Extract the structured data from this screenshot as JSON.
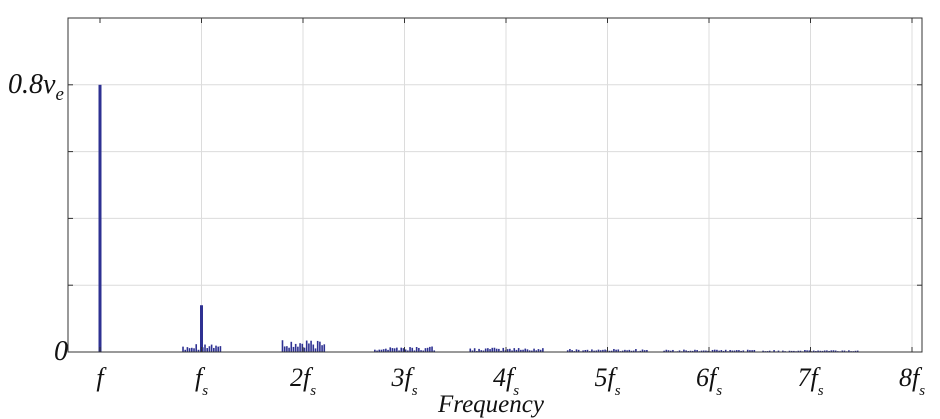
{
  "chart_data": {
    "type": "bar",
    "title": "",
    "xlabel": "Frequency",
    "ylabel": "",
    "x_unit": "f_s",
    "xlim": [
      0,
      8
    ],
    "ylim": [
      0,
      1.0
    ],
    "grid": true,
    "legend": "none",
    "bar_color": "#2e3192",
    "x_ticks": [
      {
        "value": 0,
        "main": "f",
        "sub": ""
      },
      {
        "value": 1,
        "main": "f",
        "sub": "s"
      },
      {
        "value": 2,
        "main": "2f",
        "sub": "s"
      },
      {
        "value": 3,
        "main": "3f",
        "sub": "s"
      },
      {
        "value": 4,
        "main": "4f",
        "sub": "s"
      },
      {
        "value": 5,
        "main": "5f",
        "sub": "s"
      },
      {
        "value": 6,
        "main": "6f",
        "sub": "s"
      },
      {
        "value": 7,
        "main": "7f",
        "sub": "s"
      },
      {
        "value": 8,
        "main": "8f",
        "sub": "s"
      }
    ],
    "y_ticks": [
      {
        "value": 0,
        "main": "0",
        "sub": ""
      },
      {
        "value": 0.8,
        "main": "0.8v",
        "sub": "e"
      }
    ],
    "peaks": [
      {
        "x": 0.0,
        "y": 0.8
      },
      {
        "x": 1.0,
        "y": 0.14
      }
    ],
    "sideband_clusters": [
      {
        "center": 1.0,
        "width": 0.38,
        "level": 0.025
      },
      {
        "center": 2.0,
        "width": 0.42,
        "level": 0.03
      },
      {
        "center": 3.0,
        "width": 0.6,
        "level": 0.014
      },
      {
        "center": 4.0,
        "width": 0.72,
        "level": 0.011
      },
      {
        "center": 5.0,
        "width": 0.8,
        "level": 0.008
      },
      {
        "center": 6.0,
        "width": 0.9,
        "level": 0.006
      },
      {
        "center": 7.0,
        "width": 0.95,
        "level": 0.005
      }
    ]
  }
}
